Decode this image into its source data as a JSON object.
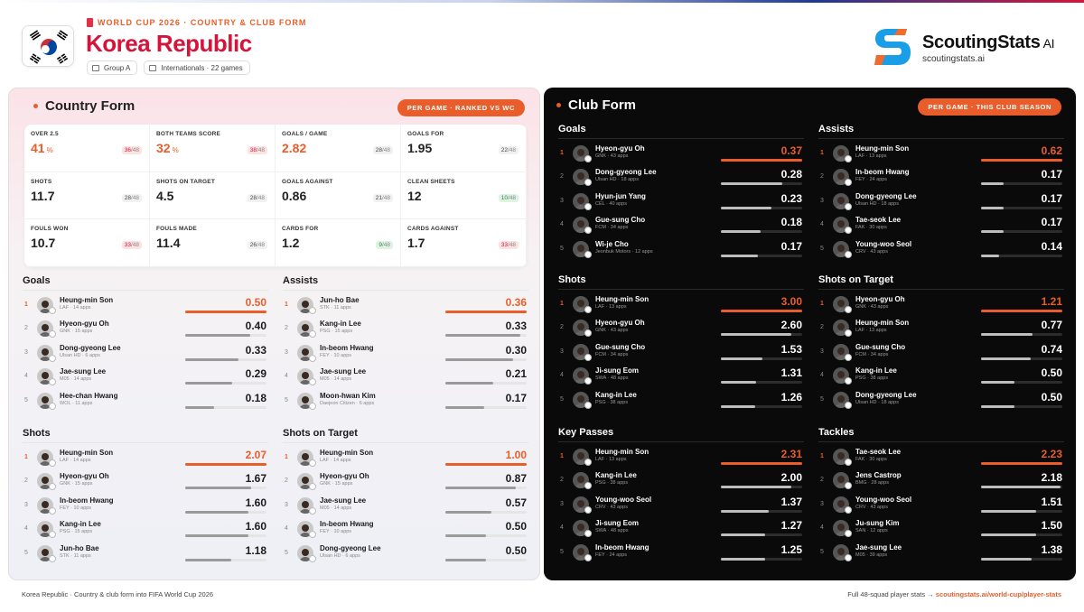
{
  "header": {
    "kicker": "WORLD CUP 2026 · COUNTRY & CLUB FORM",
    "title": "Korea Republic",
    "chip_group": "Group A",
    "chip_internationals": "Internationals · 22 games",
    "flag_icon": "korea-flag-icon",
    "brand_name": "ScoutingStats",
    "brand_ai": "AI",
    "brand_url": "scoutingstats.ai"
  },
  "country_form": {
    "title": "Country Form",
    "pill": "PER GAME · RANKED VS WC",
    "stats": [
      {
        "label": "OVER 2.5",
        "value": "41",
        "suffix": "%",
        "rank": "36",
        "of": "/48",
        "tone": "red",
        "highlight": true
      },
      {
        "label": "BOTH TEAMS SCORE",
        "value": "32",
        "suffix": "%",
        "rank": "38",
        "of": "/48",
        "tone": "red",
        "highlight": true
      },
      {
        "label": "GOALS / GAME",
        "value": "2.82",
        "suffix": "",
        "rank": "28",
        "of": "/48",
        "tone": "neutral",
        "highlight": true
      },
      {
        "label": "GOALS FOR",
        "value": "1.95",
        "suffix": "",
        "rank": "22",
        "of": "/48",
        "tone": "neutral",
        "highlight": false
      },
      {
        "label": "SHOTS",
        "value": "11.7",
        "suffix": "",
        "rank": "28",
        "of": "/48",
        "tone": "neutral",
        "highlight": false
      },
      {
        "label": "SHOTS ON TARGET",
        "value": "4.5",
        "suffix": "",
        "rank": "28",
        "of": "/48",
        "tone": "neutral",
        "highlight": false
      },
      {
        "label": "GOALS AGAINST",
        "value": "0.86",
        "suffix": "",
        "rank": "21",
        "of": "/48",
        "tone": "neutral",
        "highlight": false
      },
      {
        "label": "CLEAN SHEETS",
        "value": "12",
        "suffix": "",
        "rank": "10",
        "of": "/48",
        "tone": "green",
        "highlight": false
      },
      {
        "label": "FOULS WON",
        "value": "10.7",
        "suffix": "",
        "rank": "33",
        "of": "/48",
        "tone": "red",
        "highlight": false
      },
      {
        "label": "FOULS MADE",
        "value": "11.4",
        "suffix": "",
        "rank": "26",
        "of": "/48",
        "tone": "neutral",
        "highlight": false
      },
      {
        "label": "CARDS FOR",
        "value": "1.2",
        "suffix": "",
        "rank": "9",
        "of": "/48",
        "tone": "green",
        "highlight": false
      },
      {
        "label": "CARDS AGAINST",
        "value": "1.7",
        "suffix": "",
        "rank": "33",
        "of": "/48",
        "tone": "red",
        "highlight": false
      }
    ],
    "lists": [
      {
        "title": "Goals",
        "rows": [
          {
            "name": "Heung-min Son",
            "sub": "LAF · 14 apps",
            "value": "0.50"
          },
          {
            "name": "Hyeon-gyu Oh",
            "sub": "GNK · 15 apps",
            "value": "0.40"
          },
          {
            "name": "Dong-gyeong Lee",
            "sub": "Ulsan HD · 6 apps",
            "value": "0.33"
          },
          {
            "name": "Jae-sung Lee",
            "sub": "M05 · 14 apps",
            "value": "0.29"
          },
          {
            "name": "Hee-chan Hwang",
            "sub": "WOL · 11 apps",
            "value": "0.18"
          }
        ]
      },
      {
        "title": "Assists",
        "rows": [
          {
            "name": "Jun-ho Bae",
            "sub": "STK · 11 apps",
            "value": "0.36"
          },
          {
            "name": "Kang-in Lee",
            "sub": "PSG · 15 apps",
            "value": "0.33"
          },
          {
            "name": "In-beom Hwang",
            "sub": "FEY · 10 apps",
            "value": "0.30"
          },
          {
            "name": "Jae-sung Lee",
            "sub": "M05 · 14 apps",
            "value": "0.21"
          },
          {
            "name": "Moon-hwan Kim",
            "sub": "Daejeon Citizen · 6 apps",
            "value": "0.17"
          }
        ]
      },
      {
        "title": "Shots",
        "rows": [
          {
            "name": "Heung-min Son",
            "sub": "LAF · 14 apps",
            "value": "2.07"
          },
          {
            "name": "Hyeon-gyu Oh",
            "sub": "GNK · 15 apps",
            "value": "1.67"
          },
          {
            "name": "In-beom Hwang",
            "sub": "FEY · 10 apps",
            "value": "1.60"
          },
          {
            "name": "Kang-in Lee",
            "sub": "PSG · 15 apps",
            "value": "1.60"
          },
          {
            "name": "Jun-ho Bae",
            "sub": "STK · 11 apps",
            "value": "1.18"
          }
        ]
      },
      {
        "title": "Shots on Target",
        "rows": [
          {
            "name": "Heung-min Son",
            "sub": "LAF · 14 apps",
            "value": "1.00"
          },
          {
            "name": "Hyeon-gyu Oh",
            "sub": "GNK · 15 apps",
            "value": "0.87"
          },
          {
            "name": "Jae-sung Lee",
            "sub": "M05 · 14 apps",
            "value": "0.57"
          },
          {
            "name": "In-beom Hwang",
            "sub": "FEY · 10 apps",
            "value": "0.50"
          },
          {
            "name": "Dong-gyeong Lee",
            "sub": "Ulsan HD · 6 apps",
            "value": "0.50"
          }
        ]
      }
    ]
  },
  "club_form": {
    "title": "Club Form",
    "pill": "PER GAME · THIS CLUB SEASON",
    "lists": [
      {
        "title": "Goals",
        "rows": [
          {
            "name": "Hyeon-gyu Oh",
            "sub": "GNK · 43 apps",
            "value": "0.37"
          },
          {
            "name": "Dong-gyeong Lee",
            "sub": "Ulsan HD · 18 apps",
            "value": "0.28"
          },
          {
            "name": "Hyun-jun Yang",
            "sub": "CEL · 40 apps",
            "value": "0.23"
          },
          {
            "name": "Gue-sung Cho",
            "sub": "FCM · 34 apps",
            "value": "0.18"
          },
          {
            "name": "Wi-je Cho",
            "sub": "Jeonbuk Motors · 12 apps",
            "value": "0.17"
          }
        ]
      },
      {
        "title": "Assists",
        "rows": [
          {
            "name": "Heung-min Son",
            "sub": "LAF · 13 apps",
            "value": "0.62"
          },
          {
            "name": "In-beom Hwang",
            "sub": "FEY · 24 apps",
            "value": "0.17"
          },
          {
            "name": "Dong-gyeong Lee",
            "sub": "Ulsan HD · 18 apps",
            "value": "0.17"
          },
          {
            "name": "Tae-seok Lee",
            "sub": "FAK · 30 apps",
            "value": "0.17"
          },
          {
            "name": "Young-woo Seol",
            "sub": "CRV · 43 apps",
            "value": "0.14"
          }
        ]
      },
      {
        "title": "Shots",
        "rows": [
          {
            "name": "Heung-min Son",
            "sub": "LAF · 13 apps",
            "value": "3.00"
          },
          {
            "name": "Hyeon-gyu Oh",
            "sub": "GNK · 43 apps",
            "value": "2.60"
          },
          {
            "name": "Gue-sung Cho",
            "sub": "FCM · 34 apps",
            "value": "1.53"
          },
          {
            "name": "Ji-sung Eom",
            "sub": "SWA · 48 apps",
            "value": "1.31"
          },
          {
            "name": "Kang-in Lee",
            "sub": "PSG · 38 apps",
            "value": "1.26"
          }
        ]
      },
      {
        "title": "Shots on Target",
        "rows": [
          {
            "name": "Hyeon-gyu Oh",
            "sub": "GNK · 43 apps",
            "value": "1.21"
          },
          {
            "name": "Heung-min Son",
            "sub": "LAF · 13 apps",
            "value": "0.77"
          },
          {
            "name": "Gue-sung Cho",
            "sub": "FCM · 34 apps",
            "value": "0.74"
          },
          {
            "name": "Kang-in Lee",
            "sub": "PSG · 38 apps",
            "value": "0.50"
          },
          {
            "name": "Dong-gyeong Lee",
            "sub": "Ulsan HD · 18 apps",
            "value": "0.50"
          }
        ]
      },
      {
        "title": "Key Passes",
        "rows": [
          {
            "name": "Heung-min Son",
            "sub": "LAF · 13 apps",
            "value": "2.31"
          },
          {
            "name": "Kang-in Lee",
            "sub": "PSG · 38 apps",
            "value": "2.00"
          },
          {
            "name": "Young-woo Seol",
            "sub": "CRV · 43 apps",
            "value": "1.37"
          },
          {
            "name": "Ji-sung Eom",
            "sub": "SWA · 48 apps",
            "value": "1.27"
          },
          {
            "name": "In-beom Hwang",
            "sub": "FEY · 24 apps",
            "value": "1.25"
          }
        ]
      },
      {
        "title": "Tackles",
        "rows": [
          {
            "name": "Tae-seok Lee",
            "sub": "FAK · 30 apps",
            "value": "2.23"
          },
          {
            "name": "Jens Castrop",
            "sub": "BMG · 28 apps",
            "value": "2.18"
          },
          {
            "name": "Young-woo Seol",
            "sub": "CRV · 43 apps",
            "value": "1.51"
          },
          {
            "name": "Ju-sung Kim",
            "sub": "SAN · 12 apps",
            "value": "1.50"
          },
          {
            "name": "Jae-sung Lee",
            "sub": "M05 · 39 apps",
            "value": "1.38"
          }
        ]
      }
    ]
  },
  "footer": {
    "left": "Korea Republic · Country & club form into FIFA World Cup 2026",
    "right_prefix": "Full 48-squad player stats →",
    "right_link": "scoutingstats.ai/world-cup/player-stats"
  },
  "colors": {
    "accent": "#e85d2a",
    "title_red": "#d6143a",
    "dark_panel": "#0a0a0a"
  }
}
